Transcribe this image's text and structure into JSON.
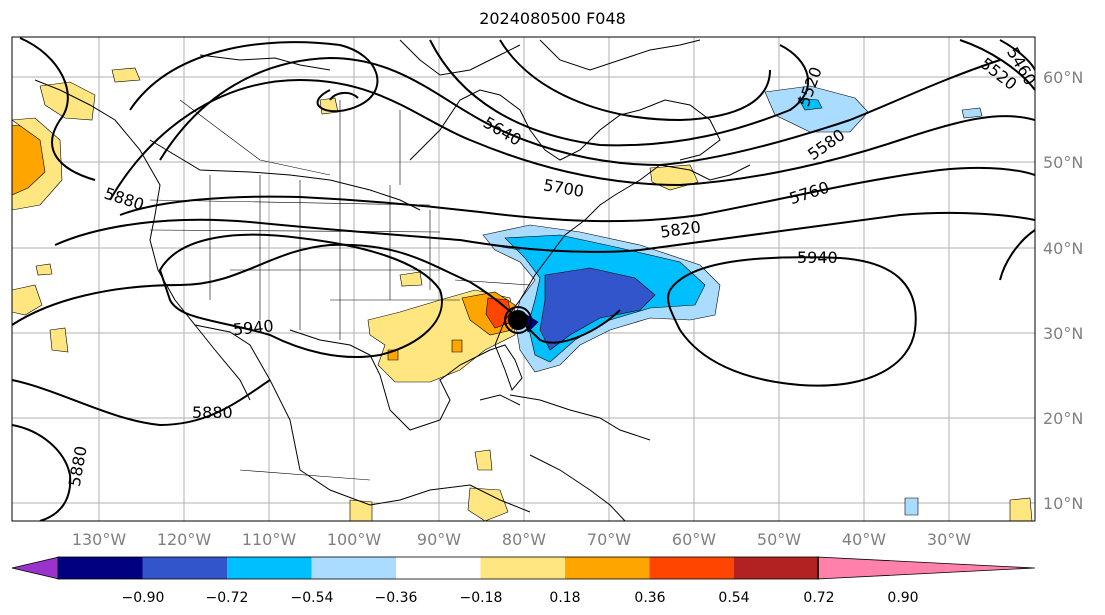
{
  "title": "2024080500 F048",
  "map": {
    "lon_labels": [
      "130°W",
      "120°W",
      "110°W",
      "100°W",
      "90°W",
      "80°W",
      "70°W",
      "60°W",
      "50°W",
      "40°W",
      "30°W"
    ],
    "lat_labels": [
      "60°N",
      "50°N",
      "40°N",
      "30°N",
      "20°N",
      "10°N"
    ],
    "contour_labels": [
      "5460",
      "5520",
      "5520",
      "5580",
      "5640",
      "5700",
      "5760",
      "5820",
      "5880",
      "5880",
      "5880",
      "5940",
      "5940"
    ]
  },
  "colorbar": {
    "ticks": [
      "−0.90",
      "−0.72",
      "−0.54",
      "−0.36",
      "−0.18",
      "0.18",
      "0.36",
      "0.54",
      "0.72",
      "0.90"
    ],
    "colors": [
      "#9933cc",
      "#000080",
      "#3355cc",
      "#00bfff",
      "#aadcff",
      "#ffffff",
      "#ffe680",
      "#ffa500",
      "#ff4500",
      "#b22222",
      "#ff80aa"
    ]
  }
}
